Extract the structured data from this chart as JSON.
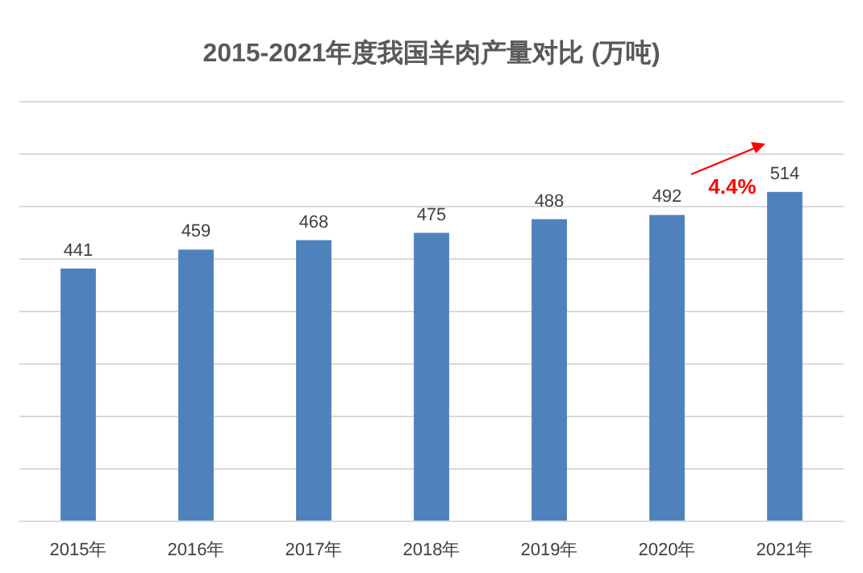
{
  "chart_data": {
    "type": "bar",
    "title": "2015-2021年度我国羊肉产量对比 (万吨)",
    "categories": [
      "2015年",
      "2016年",
      "2017年",
      "2018年",
      "2019年",
      "2020年",
      "2021年"
    ],
    "values": [
      441,
      459,
      468,
      475,
      488,
      492,
      514
    ],
    "color": "#4f81bd",
    "ylim": [
      200,
      600
    ],
    "yticks": [
      {
        "value": 200,
        "label": null
      },
      {
        "value": 250,
        "label": null
      },
      {
        "value": 300,
        "label": null
      },
      {
        "value": 350,
        "label": null
      },
      {
        "value": 400,
        "label": null
      },
      {
        "value": 450,
        "label": null
      },
      {
        "value": 500,
        "label": null
      },
      {
        "value": 550,
        "label": null
      },
      {
        "value": 600,
        "label": null
      }
    ],
    "tick_labels": "x",
    "grid": "y",
    "data_labels": true,
    "annotations": [
      "4.4%"
    ]
  }
}
